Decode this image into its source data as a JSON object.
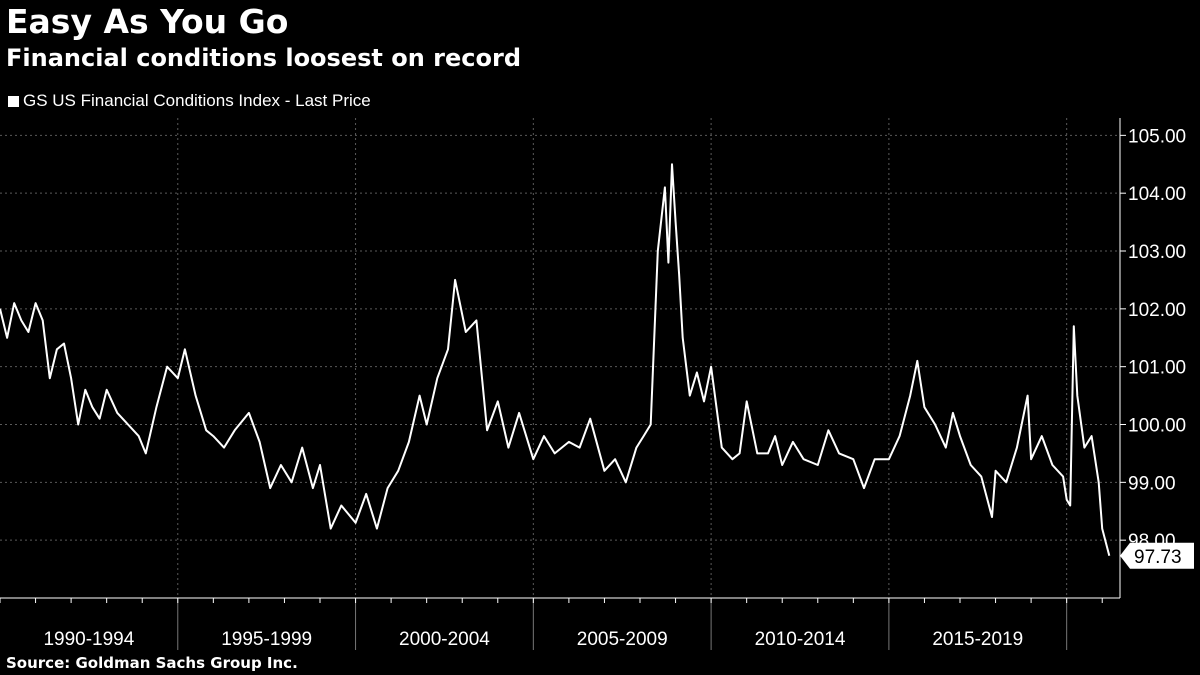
{
  "title": "Easy As You Go",
  "subtitle": "Financial conditions loosest on record",
  "source": "Source: Goldman Sachs Group Inc.",
  "colors": {
    "background": "#000000",
    "line": "#ffffff",
    "grid": "#5a5a5a"
  },
  "chart_data": {
    "type": "line",
    "title": "Easy As You Go",
    "subtitle": "Financial conditions loosest on record",
    "xlabel": "",
    "ylabel": "",
    "ylim": [
      97.0,
      105.3
    ],
    "y_ticks": [
      "105.00",
      "104.00",
      "103.00",
      "102.00",
      "101.00",
      "100.00",
      "99.00",
      "98.00"
    ],
    "y_axis_side": "right",
    "grid": true,
    "legend_position": "top-left",
    "x_categories": [
      "1990-1994",
      "1995-1999",
      "2000-2004",
      "2005-2009",
      "2010-2014",
      "2015-2019"
    ],
    "x_range": [
      1990.0,
      2021.5
    ],
    "last_value_label": "97.73",
    "series": [
      {
        "name": "GS US Financial Conditions Index - Last Price",
        "color": "#ffffff",
        "x": [
          1990.0,
          1990.2,
          1990.4,
          1990.6,
          1990.8,
          1991.0,
          1991.2,
          1991.4,
          1991.6,
          1991.8,
          1992.0,
          1992.2,
          1992.4,
          1992.6,
          1992.8,
          1993.0,
          1993.3,
          1993.6,
          1993.9,
          1994.1,
          1994.4,
          1994.7,
          1995.0,
          1995.2,
          1995.5,
          1995.8,
          1996.0,
          1996.3,
          1996.6,
          1997.0,
          1997.3,
          1997.6,
          1997.9,
          1998.2,
          1998.5,
          1998.8,
          1999.0,
          1999.3,
          1999.6,
          2000.0,
          2000.3,
          2000.6,
          2000.9,
          2001.2,
          2001.5,
          2001.8,
          2002.0,
          2002.3,
          2002.6,
          2002.8,
          2003.1,
          2003.4,
          2003.7,
          2004.0,
          2004.3,
          2004.6,
          2005.0,
          2005.3,
          2005.6,
          2006.0,
          2006.3,
          2006.6,
          2007.0,
          2007.3,
          2007.6,
          2007.9,
          2008.1,
          2008.3,
          2008.5,
          2008.7,
          2008.8,
          2008.9,
          2009.0,
          2009.1,
          2009.2,
          2009.4,
          2009.6,
          2009.8,
          2010.0,
          2010.3,
          2010.6,
          2010.8,
          2011.0,
          2011.3,
          2011.6,
          2011.8,
          2012.0,
          2012.3,
          2012.6,
          2013.0,
          2013.3,
          2013.6,
          2014.0,
          2014.3,
          2014.6,
          2015.0,
          2015.3,
          2015.6,
          2015.8,
          2016.0,
          2016.3,
          2016.6,
          2016.8,
          2017.0,
          2017.3,
          2017.6,
          2017.9,
          2018.0,
          2018.3,
          2018.6,
          2018.9,
          2019.0,
          2019.3,
          2019.6,
          2019.9,
          2020.0,
          2020.1,
          2020.2,
          2020.3,
          2020.5,
          2020.7,
          2020.9,
          2021.0,
          2021.2
        ],
        "values": [
          102.0,
          101.5,
          102.1,
          101.8,
          101.6,
          102.1,
          101.8,
          100.8,
          101.3,
          101.4,
          100.8,
          100.0,
          100.6,
          100.3,
          100.1,
          100.6,
          100.2,
          100.0,
          99.8,
          99.5,
          100.3,
          101.0,
          100.8,
          101.3,
          100.5,
          99.9,
          99.8,
          99.6,
          99.9,
          100.2,
          99.7,
          98.9,
          99.3,
          99.0,
          99.6,
          98.9,
          99.3,
          98.2,
          98.6,
          98.3,
          98.8,
          98.2,
          98.9,
          99.2,
          99.7,
          100.5,
          100.0,
          100.8,
          101.3,
          102.5,
          101.6,
          101.8,
          99.9,
          100.4,
          99.6,
          100.2,
          99.4,
          99.8,
          99.5,
          99.7,
          99.6,
          100.1,
          99.2,
          99.4,
          99.0,
          99.6,
          99.8,
          100.0,
          103.0,
          104.1,
          102.8,
          104.5,
          103.5,
          102.6,
          101.5,
          100.5,
          100.9,
          100.4,
          101.0,
          99.6,
          99.4,
          99.5,
          100.4,
          99.5,
          99.5,
          99.8,
          99.3,
          99.7,
          99.4,
          99.3,
          99.9,
          99.5,
          99.4,
          98.9,
          99.4,
          99.4,
          99.8,
          100.5,
          101.1,
          100.3,
          100.0,
          99.6,
          100.2,
          99.8,
          99.3,
          99.1,
          98.4,
          99.2,
          99.0,
          99.6,
          100.5,
          99.4,
          99.8,
          99.3,
          99.1,
          98.7,
          98.6,
          101.7,
          100.5,
          99.6,
          99.8,
          99.0,
          98.2,
          97.73
        ]
      }
    ]
  }
}
